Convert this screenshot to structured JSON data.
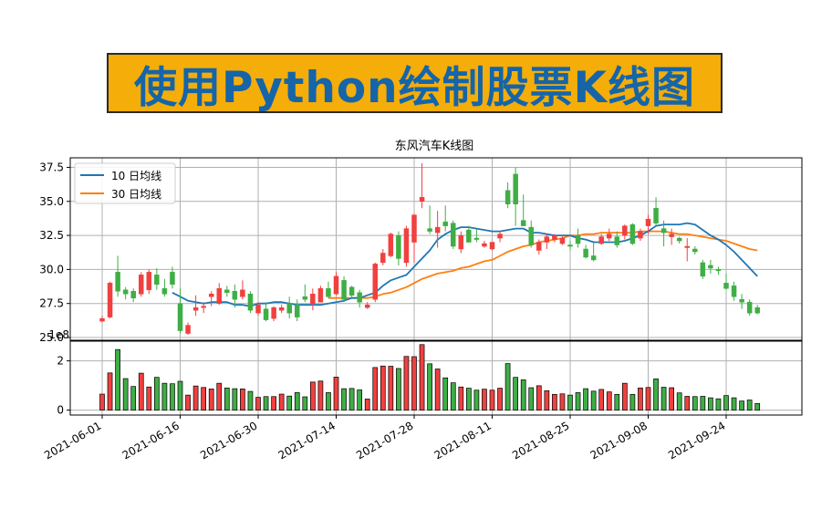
{
  "banner": {
    "text": "使用Python绘制股票K线图"
  },
  "colors": {
    "up": "#f0403f",
    "down": "#3fae45",
    "ma10": "#1f77b4",
    "ma30": "#ff7f0e",
    "grid": "#b0b0b0",
    "banner_bg": "#f5ad0a",
    "banner_text": "#1565a8"
  },
  "chart_data": {
    "type": "candlestick",
    "title": "东风汽车K线图",
    "price_axis": {
      "ylim": [
        24.8,
        38.2
      ],
      "ticks": [
        25.0,
        27.5,
        30.0,
        32.5,
        35.0,
        37.5
      ],
      "tick_labels": [
        "25.0",
        "27.5",
        "30.0",
        "32.5",
        "35.0",
        "37.5"
      ]
    },
    "volume_axis": {
      "ylim": [
        -0.2,
        2.8
      ],
      "ticks": [
        0,
        2
      ],
      "tick_labels": [
        "0",
        "2"
      ],
      "offset_label": "1e8"
    },
    "x_ticks": [
      {
        "label": "2021-06-01",
        "index": 0
      },
      {
        "label": "2021-06-16",
        "index": 10
      },
      {
        "label": "2021-06-30",
        "index": 20
      },
      {
        "label": "2021-07-14",
        "index": 30
      },
      {
        "label": "2021-07-28",
        "index": 40
      },
      {
        "label": "2021-08-11",
        "index": 50
      },
      {
        "label": "2021-08-25",
        "index": 60
      },
      {
        "label": "2021-09-08",
        "index": 70
      },
      {
        "label": "2021-09-24",
        "index": 80
      }
    ],
    "legend": {
      "position": "upper-left",
      "entries": [
        "10 日均线",
        "30 日均线"
      ]
    },
    "grid": true,
    "ohlc": [
      [
        26.2,
        26.6,
        26.1,
        26.4
      ],
      [
        26.5,
        29.1,
        26.4,
        29.0
      ],
      [
        29.8,
        31.0,
        28.0,
        28.4
      ],
      [
        28.5,
        28.7,
        27.8,
        28.2
      ],
      [
        28.4,
        28.6,
        27.6,
        27.9
      ],
      [
        28.2,
        29.8,
        28.0,
        29.6
      ],
      [
        28.5,
        30.0,
        28.2,
        29.8
      ],
      [
        29.6,
        30.1,
        28.5,
        28.9
      ],
      [
        28.6,
        29.3,
        28.0,
        28.2
      ],
      [
        29.8,
        30.2,
        28.6,
        28.9
      ],
      [
        27.5,
        28.6,
        25.3,
        25.5
      ],
      [
        25.3,
        26.1,
        25.2,
        25.9
      ],
      [
        27.0,
        28.1,
        26.6,
        27.2
      ],
      [
        27.2,
        27.6,
        26.8,
        27.3
      ],
      [
        28.0,
        28.4,
        27.3,
        28.2
      ],
      [
        27.5,
        29.0,
        27.4,
        28.6
      ],
      [
        28.5,
        28.8,
        28.0,
        28.3
      ],
      [
        28.4,
        28.9,
        27.2,
        27.8
      ],
      [
        28.0,
        29.2,
        27.8,
        28.5
      ],
      [
        28.2,
        28.4,
        26.8,
        27.0
      ],
      [
        26.8,
        27.6,
        26.6,
        27.4
      ],
      [
        27.1,
        27.6,
        26.2,
        26.3
      ],
      [
        26.4,
        27.3,
        26.2,
        27.2
      ],
      [
        27.0,
        27.4,
        26.8,
        27.2
      ],
      [
        27.5,
        28.0,
        26.4,
        26.8
      ],
      [
        27.4,
        27.8,
        26.2,
        26.5
      ],
      [
        28.0,
        28.9,
        27.6,
        27.8
      ],
      [
        27.5,
        28.6,
        27.0,
        28.2
      ],
      [
        27.6,
        28.8,
        27.6,
        28.6
      ],
      [
        28.6,
        29.1,
        27.9,
        28.0
      ],
      [
        28.2,
        29.8,
        28.1,
        29.5
      ],
      [
        29.2,
        29.5,
        27.6,
        27.8
      ],
      [
        28.7,
        28.8,
        27.9,
        28.1
      ],
      [
        28.3,
        28.5,
        27.2,
        27.6
      ],
      [
        27.2,
        27.6,
        27.1,
        27.4
      ],
      [
        27.8,
        30.5,
        27.6,
        30.4
      ],
      [
        30.5,
        31.5,
        30.3,
        31.2
      ],
      [
        31.0,
        32.7,
        30.9,
        32.6
      ],
      [
        32.5,
        32.8,
        30.3,
        30.8
      ],
      [
        30.5,
        33.2,
        30.2,
        33.0
      ],
      [
        32.0,
        34.1,
        30.5,
        34.0
      ],
      [
        35.0,
        37.8,
        34.5,
        35.3
      ],
      [
        33.0,
        34.7,
        32.6,
        32.8
      ],
      [
        32.7,
        34.3,
        31.6,
        33.1
      ],
      [
        33.5,
        34.7,
        32.8,
        33.2
      ],
      [
        33.4,
        33.6,
        31.5,
        31.7
      ],
      [
        31.5,
        32.8,
        31.2,
        32.5
      ],
      [
        32.9,
        33.2,
        32.0,
        32.0
      ],
      [
        32.3,
        33.0,
        32.0,
        32.2
      ],
      [
        31.7,
        32.1,
        31.6,
        31.9
      ],
      [
        31.5,
        32.0,
        31.4,
        32.0
      ],
      [
        32.3,
        32.8,
        32.0,
        32.6
      ],
      [
        35.8,
        36.4,
        34.5,
        34.8
      ],
      [
        37.0,
        37.5,
        33.2,
        34.8
      ],
      [
        33.6,
        35.5,
        33.3,
        33.2
      ],
      [
        33.1,
        33.6,
        31.6,
        31.8
      ],
      [
        31.4,
        32.2,
        31.1,
        32.0
      ],
      [
        32.0,
        32.6,
        31.5,
        32.4
      ],
      [
        32.2,
        32.6,
        32.0,
        32.5
      ],
      [
        31.9,
        32.5,
        31.8,
        32.3
      ],
      [
        31.8,
        32.1,
        31.4,
        31.7
      ],
      [
        32.5,
        33.0,
        31.6,
        31.9
      ],
      [
        31.5,
        31.8,
        30.8,
        30.9
      ],
      [
        31.0,
        32.1,
        30.6,
        30.7
      ],
      [
        31.9,
        32.6,
        31.8,
        32.4
      ],
      [
        32.3,
        33.0,
        32.1,
        32.6
      ],
      [
        32.4,
        32.8,
        31.6,
        31.8
      ],
      [
        32.5,
        33.3,
        32.2,
        33.2
      ],
      [
        33.3,
        33.4,
        31.8,
        31.9
      ],
      [
        32.3,
        33.0,
        32.1,
        32.8
      ],
      [
        33.2,
        34.0,
        32.6,
        33.7
      ],
      [
        34.5,
        35.3,
        33.2,
        33.4
      ],
      [
        33.0,
        33.6,
        31.7,
        32.7
      ],
      [
        32.4,
        33.0,
        31.8,
        32.6
      ],
      [
        32.3,
        32.4,
        31.9,
        32.1
      ],
      [
        31.6,
        32.3,
        30.6,
        31.7
      ],
      [
        31.5,
        31.7,
        31.1,
        31.3
      ],
      [
        30.5,
        30.7,
        29.3,
        29.5
      ],
      [
        30.3,
        30.7,
        29.7,
        30.1
      ],
      [
        30.0,
        30.2,
        29.6,
        29.9
      ],
      [
        29.0,
        29.7,
        28.5,
        28.6
      ],
      [
        28.8,
        29.1,
        27.7,
        28.0
      ],
      [
        27.8,
        28.2,
        27.1,
        27.6
      ],
      [
        27.6,
        27.8,
        26.6,
        26.8
      ],
      [
        27.2,
        27.4,
        26.7,
        26.8
      ]
    ],
    "volume": [
      0.65,
      1.51,
      2.46,
      1.28,
      0.96,
      1.5,
      0.94,
      1.33,
      1.09,
      1.07,
      1.17,
      0.61,
      0.98,
      0.92,
      0.86,
      1.09,
      0.9,
      0.87,
      0.86,
      0.76,
      0.52,
      0.55,
      0.55,
      0.65,
      0.57,
      0.71,
      0.54,
      1.14,
      1.18,
      0.71,
      1.34,
      0.87,
      0.88,
      0.82,
      0.45,
      1.73,
      1.79,
      1.78,
      1.69,
      2.18,
      2.17,
      2.66,
      1.88,
      1.67,
      1.31,
      1.11,
      0.94,
      0.89,
      0.81,
      0.85,
      0.81,
      0.89,
      1.89,
      1.33,
      1.23,
      0.91,
      0.99,
      0.79,
      0.64,
      0.66,
      0.61,
      0.71,
      0.87,
      0.77,
      0.84,
      0.74,
      0.64,
      1.09,
      0.64,
      0.9,
      0.92,
      1.27,
      0.93,
      0.91,
      0.7,
      0.56,
      0.55,
      0.56,
      0.5,
      0.46,
      0.59,
      0.5,
      0.37,
      0.41,
      0.27
    ],
    "ma10": [
      null,
      null,
      null,
      null,
      null,
      null,
      null,
      null,
      null,
      28.3,
      28.0,
      27.7,
      27.6,
      27.5,
      27.6,
      27.6,
      27.6,
      27.4,
      27.4,
      27.3,
      27.5,
      27.5,
      27.6,
      27.6,
      27.5,
      27.4,
      27.4,
      27.4,
      27.4,
      27.5,
      27.6,
      27.7,
      27.9,
      27.9,
      28.1,
      28.3,
      28.8,
      29.2,
      29.4,
      29.6,
      30.2,
      30.8,
      31.4,
      32.2,
      32.6,
      32.9,
      33.1,
      33.1,
      33.0,
      32.9,
      32.8,
      32.8,
      32.9,
      33.0,
      33.0,
      32.7,
      32.7,
      32.6,
      32.5,
      32.5,
      32.5,
      32.3,
      32.2,
      32.0,
      32.0,
      32.0,
      32.0,
      32.1,
      32.3,
      32.5,
      32.8,
      33.2,
      33.3,
      33.3,
      33.3,
      33.4,
      33.3,
      32.9,
      32.5,
      32.2,
      31.8,
      31.3,
      30.7,
      30.1,
      29.5
    ],
    "ma30": [
      null,
      null,
      null,
      null,
      null,
      null,
      null,
      null,
      null,
      null,
      null,
      null,
      null,
      null,
      null,
      null,
      null,
      null,
      null,
      null,
      null,
      null,
      null,
      null,
      null,
      null,
      null,
      null,
      null,
      27.9,
      27.9,
      27.9,
      27.9,
      27.9,
      27.9,
      28.0,
      28.2,
      28.3,
      28.5,
      28.7,
      29.0,
      29.3,
      29.5,
      29.7,
      29.8,
      29.9,
      30.1,
      30.2,
      30.4,
      30.6,
      30.7,
      31.0,
      31.3,
      31.5,
      31.7,
      31.8,
      32.0,
      32.1,
      32.2,
      32.3,
      32.5,
      32.5,
      32.6,
      32.6,
      32.7,
      32.7,
      32.7,
      32.7,
      32.7,
      32.8,
      32.8,
      32.8,
      32.8,
      32.7,
      32.6,
      32.6,
      32.5,
      32.4,
      32.3,
      32.2,
      32.1,
      31.9,
      31.7,
      31.5,
      31.4
    ]
  }
}
